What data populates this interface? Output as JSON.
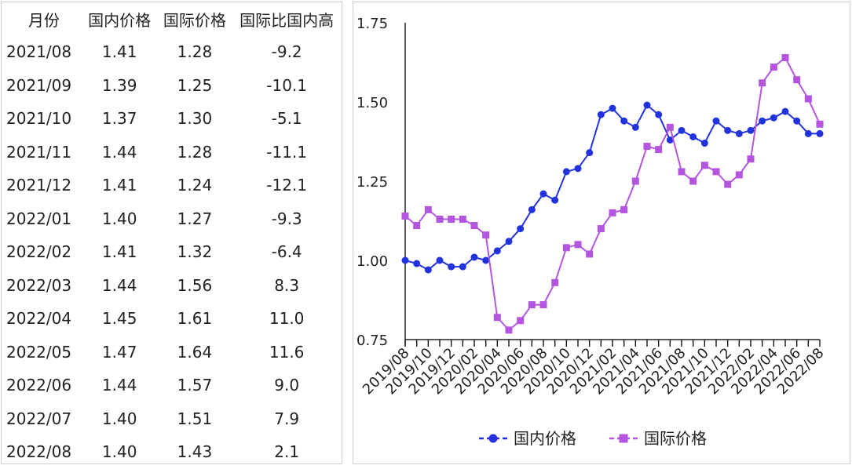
{
  "table": {
    "headers": [
      "月份",
      "国内价格",
      "国际价格",
      "国际比国内高"
    ],
    "rows": [
      [
        "2021/08",
        "1.41",
        "1.28",
        "-9.2"
      ],
      [
        "2021/09",
        "1.39",
        "1.25",
        "-10.1"
      ],
      [
        "2021/10",
        "1.37",
        "1.30",
        "-5.1"
      ],
      [
        "2021/11",
        "1.44",
        "1.28",
        "-11.1"
      ],
      [
        "2021/12",
        "1.41",
        "1.24",
        "-12.1"
      ],
      [
        "2022/01",
        "1.40",
        "1.27",
        "-9.3"
      ],
      [
        "2022/02",
        "1.41",
        "1.32",
        "-6.4"
      ],
      [
        "2022/03",
        "1.44",
        "1.56",
        "8.3"
      ],
      [
        "2022/04",
        "1.45",
        "1.61",
        "11.0"
      ],
      [
        "2022/05",
        "1.47",
        "1.64",
        "11.6"
      ],
      [
        "2022/06",
        "1.44",
        "1.57",
        "9.0"
      ],
      [
        "2022/07",
        "1.40",
        "1.51",
        "7.9"
      ],
      [
        "2022/08",
        "1.40",
        "1.43",
        "2.1"
      ]
    ]
  },
  "chart_data": {
    "type": "line",
    "x": [
      "2019/08",
      "2019/09",
      "2019/10",
      "2019/11",
      "2019/12",
      "2020/01",
      "2020/02",
      "2020/03",
      "2020/04",
      "2020/05",
      "2020/06",
      "2020/07",
      "2020/08",
      "2020/09",
      "2020/10",
      "2020/11",
      "2020/12",
      "2021/01",
      "2021/02",
      "2021/03",
      "2021/04",
      "2021/05",
      "2021/06",
      "2021/07",
      "2021/08",
      "2021/09",
      "2021/10",
      "2021/11",
      "2021/12",
      "2022/01",
      "2022/02",
      "2022/03",
      "2022/04",
      "2022/05",
      "2022/06",
      "2022/07",
      "2022/08"
    ],
    "tick_labels": [
      "2019/08",
      "2019/10",
      "2019/12",
      "2020/02",
      "2020/04",
      "2020/06",
      "2020/08",
      "2020/10",
      "2020/12",
      "2021/02",
      "2021/04",
      "2021/06",
      "2021/08",
      "2021/10",
      "2021/12",
      "2022/02",
      "2022/04",
      "2022/06",
      "2022/08"
    ],
    "y_tick_labels": [
      "1.75",
      "1.50",
      "1.25",
      "1.00",
      "0.75"
    ],
    "ylim": [
      0.75,
      1.75
    ],
    "grid": false,
    "legend_position": "bottom",
    "series": [
      {
        "name": "国内价格",
        "color": "#2233dd",
        "marker": "circle",
        "values": [
          1.0,
          0.99,
          0.97,
          1.0,
          0.98,
          0.98,
          1.01,
          1.0,
          1.03,
          1.06,
          1.1,
          1.16,
          1.21,
          1.19,
          1.28,
          1.29,
          1.34,
          1.46,
          1.48,
          1.44,
          1.42,
          1.49,
          1.46,
          1.38,
          1.41,
          1.39,
          1.37,
          1.44,
          1.41,
          1.4,
          1.41,
          1.44,
          1.45,
          1.47,
          1.44,
          1.4,
          1.4
        ]
      },
      {
        "name": "国际价格",
        "color": "#b455e0",
        "marker": "square",
        "values": [
          1.14,
          1.11,
          1.16,
          1.13,
          1.13,
          1.13,
          1.11,
          1.08,
          0.82,
          0.78,
          0.81,
          0.86,
          0.86,
          0.93,
          1.04,
          1.05,
          1.02,
          1.1,
          1.15,
          1.16,
          1.25,
          1.36,
          1.35,
          1.42,
          1.28,
          1.25,
          1.3,
          1.28,
          1.24,
          1.27,
          1.32,
          1.56,
          1.61,
          1.64,
          1.57,
          1.51,
          1.43
        ]
      }
    ]
  }
}
